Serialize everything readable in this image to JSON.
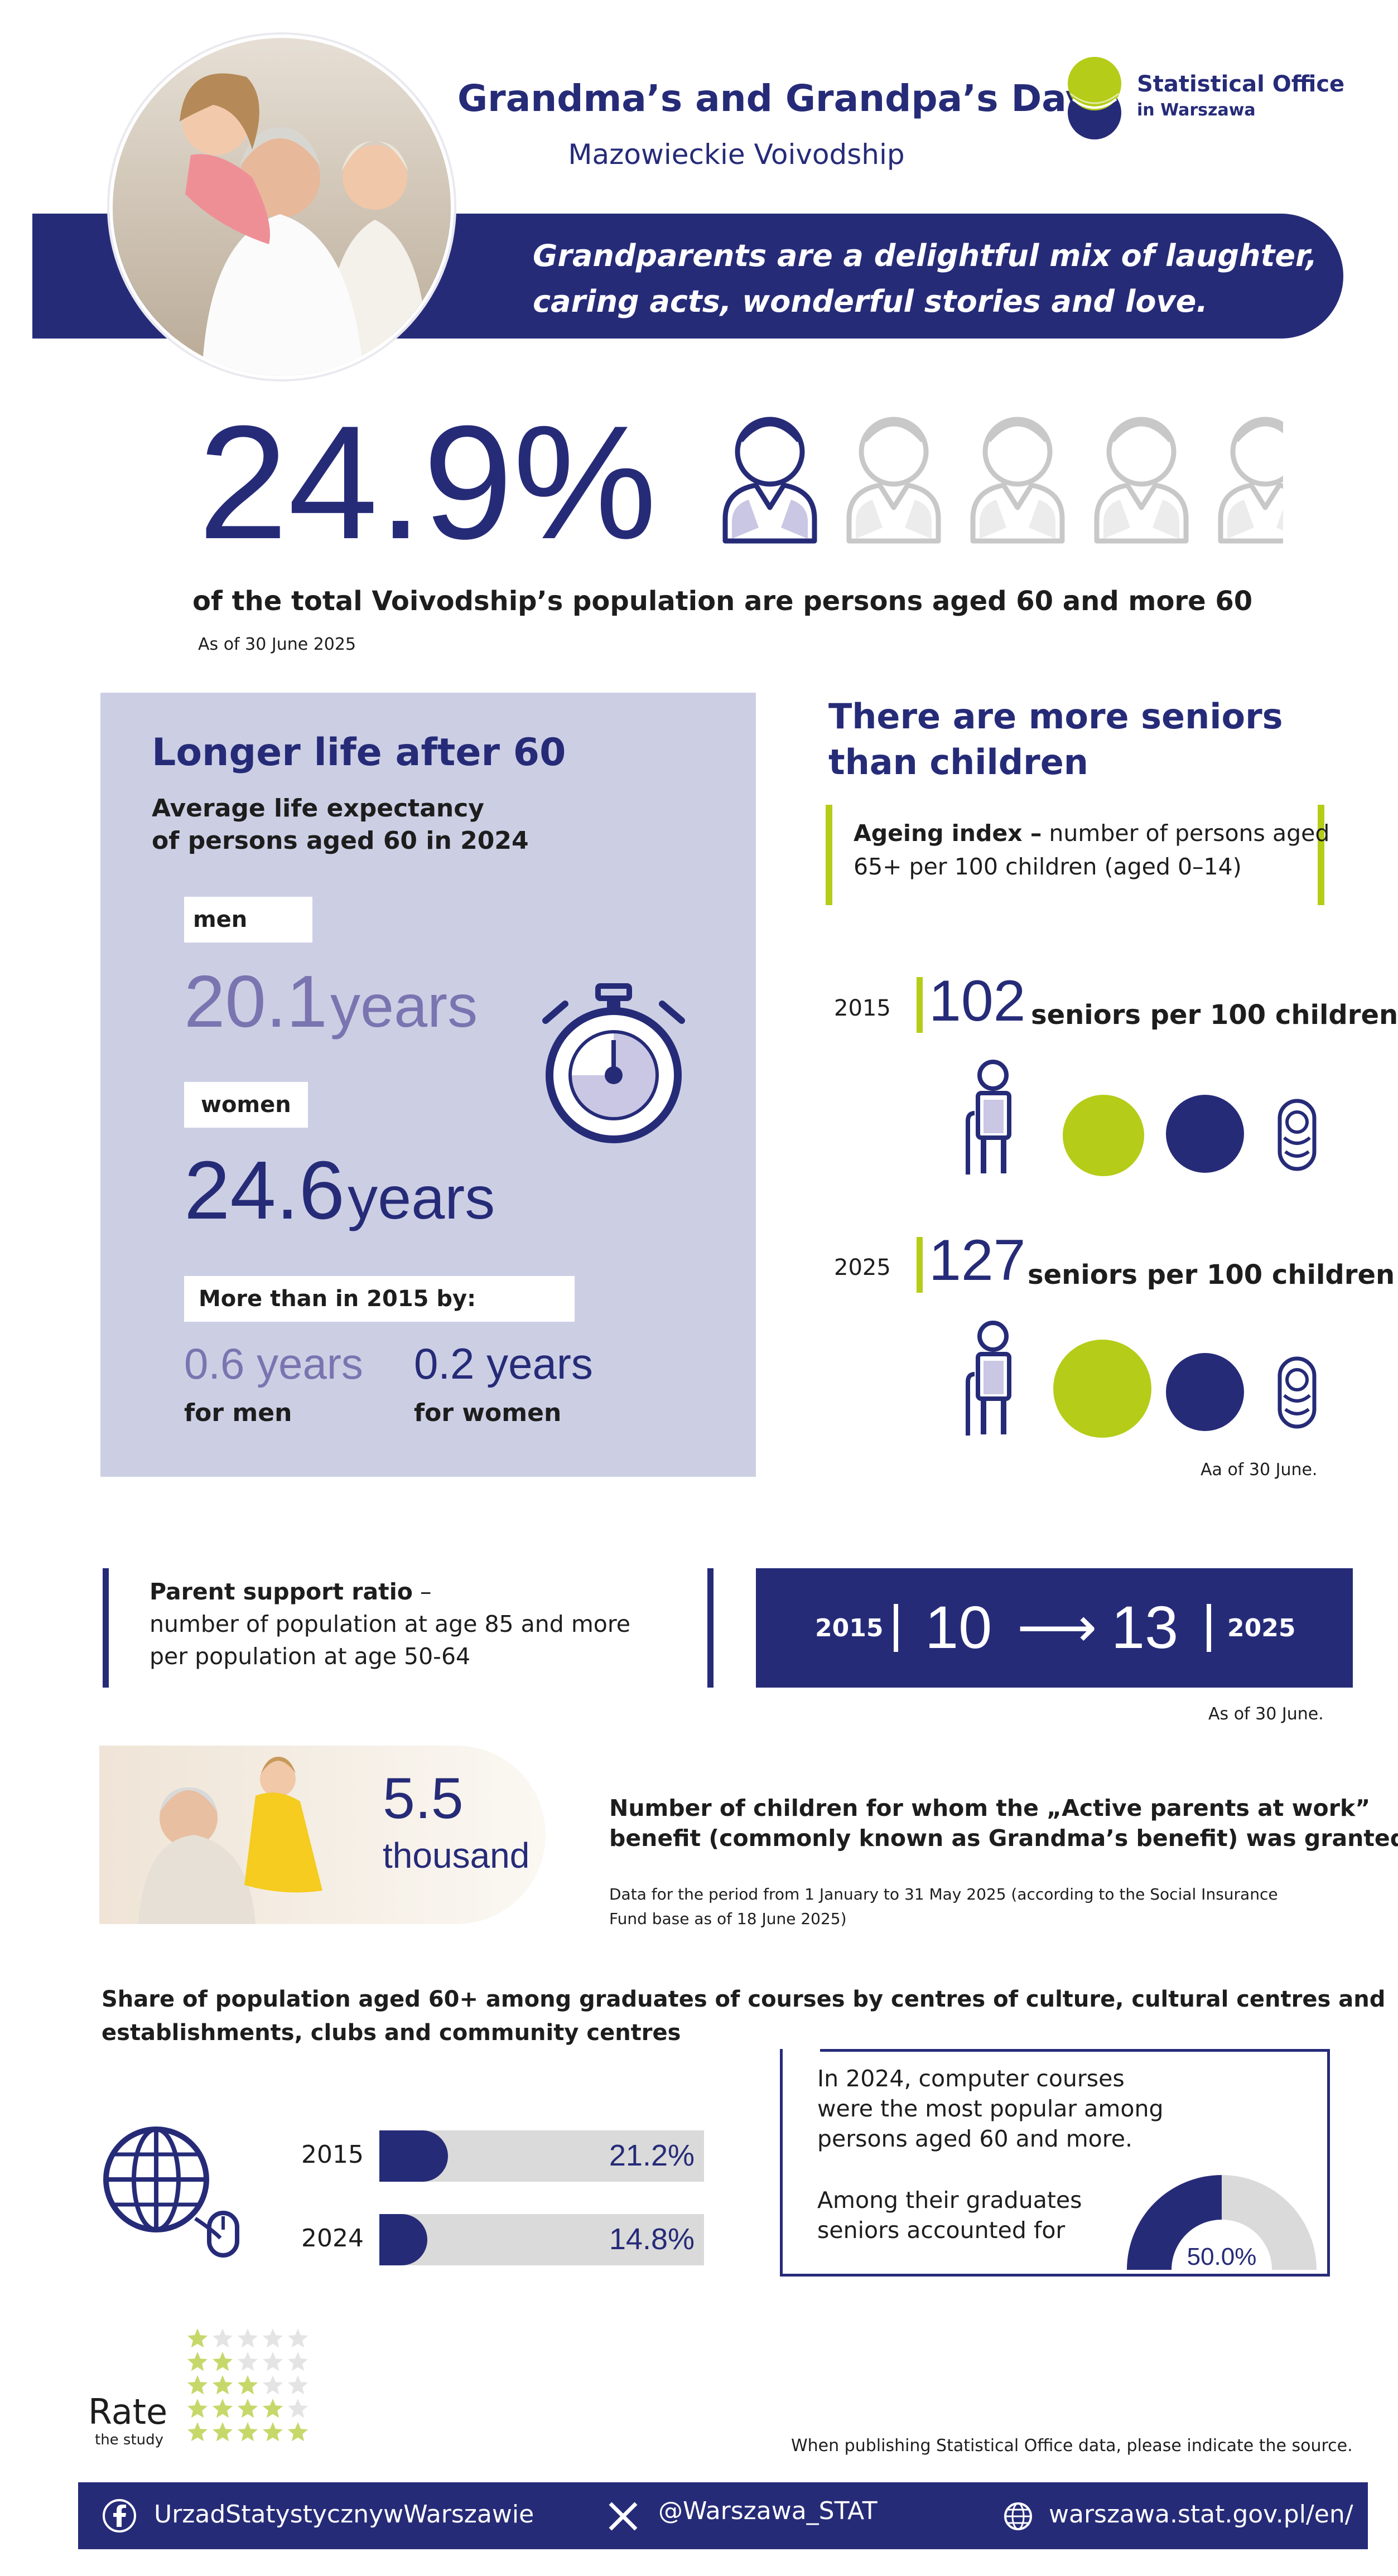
{
  "header": {
    "title": "Grandma’s and Grandpa’s Day",
    "subtitle": "Mazowieckie Voivodship",
    "logo_line1": "Statistical Office",
    "logo_line2": "in Warszawa",
    "banner_line1": "Grandparents are a delightful mix of laughter,",
    "banner_line2": "caring acts, wonderful stories and love."
  },
  "population": {
    "percent": "24.9%",
    "share_icons_highlighted": 1,
    "share_icons_total": 5,
    "caption": "of the total Voivodship’s population are persons aged 60 and more 60",
    "date_note": "As of 30 June 2025"
  },
  "life": {
    "heading": "Longer life after 60",
    "subheading_line1": "Average life expectancy",
    "subheading_line2": "of persons aged 60 in 2024",
    "men_label": "men",
    "men_value": "20.1",
    "men_unit": "years",
    "women_label": "women",
    "women_value": "24.6",
    "women_unit": "years",
    "more_label": "More than in 2015 by:",
    "men_diff": "0.6 years",
    "men_diff_label": "for men",
    "women_diff": "0.2 years",
    "women_diff_label": "for women"
  },
  "ageing": {
    "heading_line1": "There are more seniors",
    "heading_line2": "than children",
    "def_bold": "Ageing index –",
    "def_rest1": " number of persons aged",
    "def_rest2": "65+ per 100 children (aged 0–14)",
    "rows": [
      {
        "year": "2015",
        "value": "102",
        "label": "seniors per 100 children"
      },
      {
        "year": "2025",
        "value": "127",
        "label": "seniors per 100 children"
      }
    ],
    "note": "Aa of 30 June."
  },
  "support": {
    "title": "Parent support ratio",
    "dash": " –",
    "desc_line1": "number of population at age 85 and more",
    "desc_line2": "per population at age 50-64",
    "year_from": "2015",
    "value_from": "10",
    "arrow": "⟶",
    "value_to": "13",
    "year_to": "2025",
    "note": "As of 30 June."
  },
  "benefit": {
    "value": "5.5",
    "unit": "thousand",
    "title_line1": "Number of children for whom the „Active parents at work”",
    "title_line2": "benefit (commonly known as Grandma’s benefit) was granted",
    "note_line1": "Data for the period from 1 January to 31 May 2025 (according to the Social Insurance",
    "note_line2": "Fund base as of 18 June 2025)"
  },
  "courses": {
    "heading_line1": "Share of population aged 60+ among graduates of courses by centres of culture, cultural centres and",
    "heading_line2": "establishments, clubs and community centres",
    "bars": [
      {
        "year": "2015",
        "value": 21.2,
        "label": "21.2%"
      },
      {
        "year": "2024",
        "value": 14.8,
        "label": "14.8%"
      }
    ],
    "box_line1": "In 2024, computer courses",
    "box_line2": "were the most popular among",
    "box_line3": "persons aged 60 and more.",
    "box_line4": "Among their graduates",
    "box_line5": "seniors accounted for",
    "donut_value": 50.0,
    "donut_label": "50.0%"
  },
  "rating": {
    "label": "Rate",
    "sublabel": "the study",
    "levels": [
      1,
      2,
      3,
      4,
      5
    ]
  },
  "source_note": "When publishing Statistical Office data, please indicate the source.",
  "footer": {
    "facebook": "UrzadStatystycznywWarszawie",
    "x": "@Warszawa_STAT",
    "web": "warszawa.stat.gov.pl/en/"
  },
  "colors": {
    "navy": "#262b78",
    "lime": "#b5cc18",
    "lavender": "#cccfe4",
    "violet": "#7a74b0",
    "grey": "#dadada"
  }
}
